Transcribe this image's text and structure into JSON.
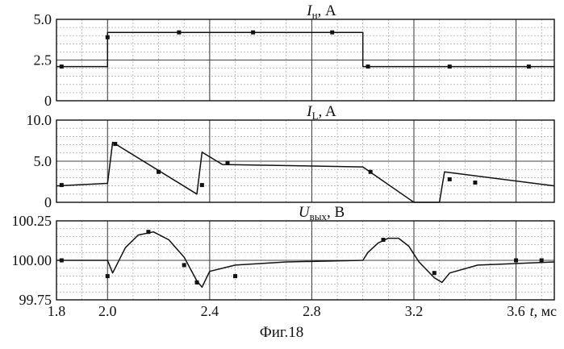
{
  "caption": "Фиг.18",
  "x_axis": {
    "label_italic": "t",
    "label_unit": ", мс",
    "ticks": [
      "1.8",
      "2.0",
      "2.4",
      "2.8",
      "3.2",
      "3.6"
    ]
  },
  "chart_data": [
    {
      "type": "line",
      "title": "Iн, A",
      "title_main": "I",
      "title_sub": "н",
      "title_unit": ", A",
      "xlim": [
        1.8,
        3.75
      ],
      "ylim": [
        0,
        5
      ],
      "yticks": [
        0,
        2.5,
        5
      ],
      "ytick_labels": [
        "0",
        "2.5",
        "5.0"
      ],
      "series": [
        {
          "x": [
            1.8,
            2.0,
            2.0,
            3.0,
            3.0,
            3.75
          ],
          "y": [
            2.1,
            2.1,
            4.2,
            4.2,
            2.1,
            2.1
          ]
        }
      ],
      "markers": [
        [
          1.82,
          2.1
        ],
        [
          2.0,
          3.9
        ],
        [
          2.28,
          4.2
        ],
        [
          2.57,
          4.2
        ],
        [
          2.88,
          4.2
        ],
        [
          3.02,
          2.1
        ],
        [
          3.34,
          2.1
        ],
        [
          3.65,
          2.1
        ]
      ]
    },
    {
      "type": "line",
      "title": "IL, A",
      "title_main": "I",
      "title_sub": "L",
      "title_unit": ", A",
      "xlim": [
        1.8,
        3.75
      ],
      "ylim": [
        0,
        10
      ],
      "yticks": [
        0,
        5,
        10
      ],
      "ytick_labels": [
        "0",
        "5.0",
        "10.0"
      ],
      "series": [
        {
          "x": [
            1.8,
            2.0,
            2.02,
            2.35,
            2.37,
            2.45,
            3.0,
            3.2,
            3.23,
            3.3,
            3.32,
            3.75
          ],
          "y": [
            2.0,
            2.3,
            7.3,
            1.0,
            6.1,
            4.6,
            4.3,
            0.0,
            0.0,
            0.0,
            3.7,
            2.0
          ]
        }
      ],
      "markers": [
        [
          1.82,
          2.1
        ],
        [
          2.03,
          7.1
        ],
        [
          2.2,
          3.7
        ],
        [
          2.37,
          2.1
        ],
        [
          2.47,
          4.8
        ],
        [
          3.03,
          3.7
        ],
        [
          3.34,
          2.8
        ],
        [
          3.44,
          2.4
        ]
      ]
    },
    {
      "type": "line",
      "title": "Uвых, B",
      "title_main": "U",
      "title_sub": "вых",
      "title_unit": ", B",
      "xlim": [
        1.8,
        3.75
      ],
      "ylim": [
        99.75,
        100.25
      ],
      "yticks": [
        99.75,
        100.0,
        100.25
      ],
      "ytick_labels": [
        "99.75",
        "100.00",
        "100.25"
      ],
      "series": [
        {
          "x": [
            1.8,
            2.0,
            2.02,
            2.07,
            2.12,
            2.18,
            2.24,
            2.3,
            2.35,
            2.37,
            2.4,
            2.5,
            2.7,
            3.0,
            3.02,
            3.06,
            3.1,
            3.14,
            3.18,
            3.22,
            3.28,
            3.31,
            3.34,
            3.45,
            3.75
          ],
          "y": [
            100.0,
            100.0,
            99.92,
            100.08,
            100.16,
            100.18,
            100.13,
            100.02,
            99.87,
            99.83,
            99.93,
            99.97,
            99.99,
            100.0,
            100.05,
            100.11,
            100.14,
            100.14,
            100.09,
            99.99,
            99.89,
            99.86,
            99.92,
            99.97,
            99.99
          ]
        }
      ],
      "markers": [
        [
          1.82,
          100.0
        ],
        [
          2.0,
          99.9
        ],
        [
          2.16,
          100.18
        ],
        [
          2.3,
          99.97
        ],
        [
          2.35,
          99.86
        ],
        [
          2.5,
          99.9
        ],
        [
          3.08,
          100.13
        ],
        [
          3.28,
          99.92
        ],
        [
          3.6,
          100.0
        ],
        [
          3.7,
          100.0
        ]
      ]
    }
  ]
}
